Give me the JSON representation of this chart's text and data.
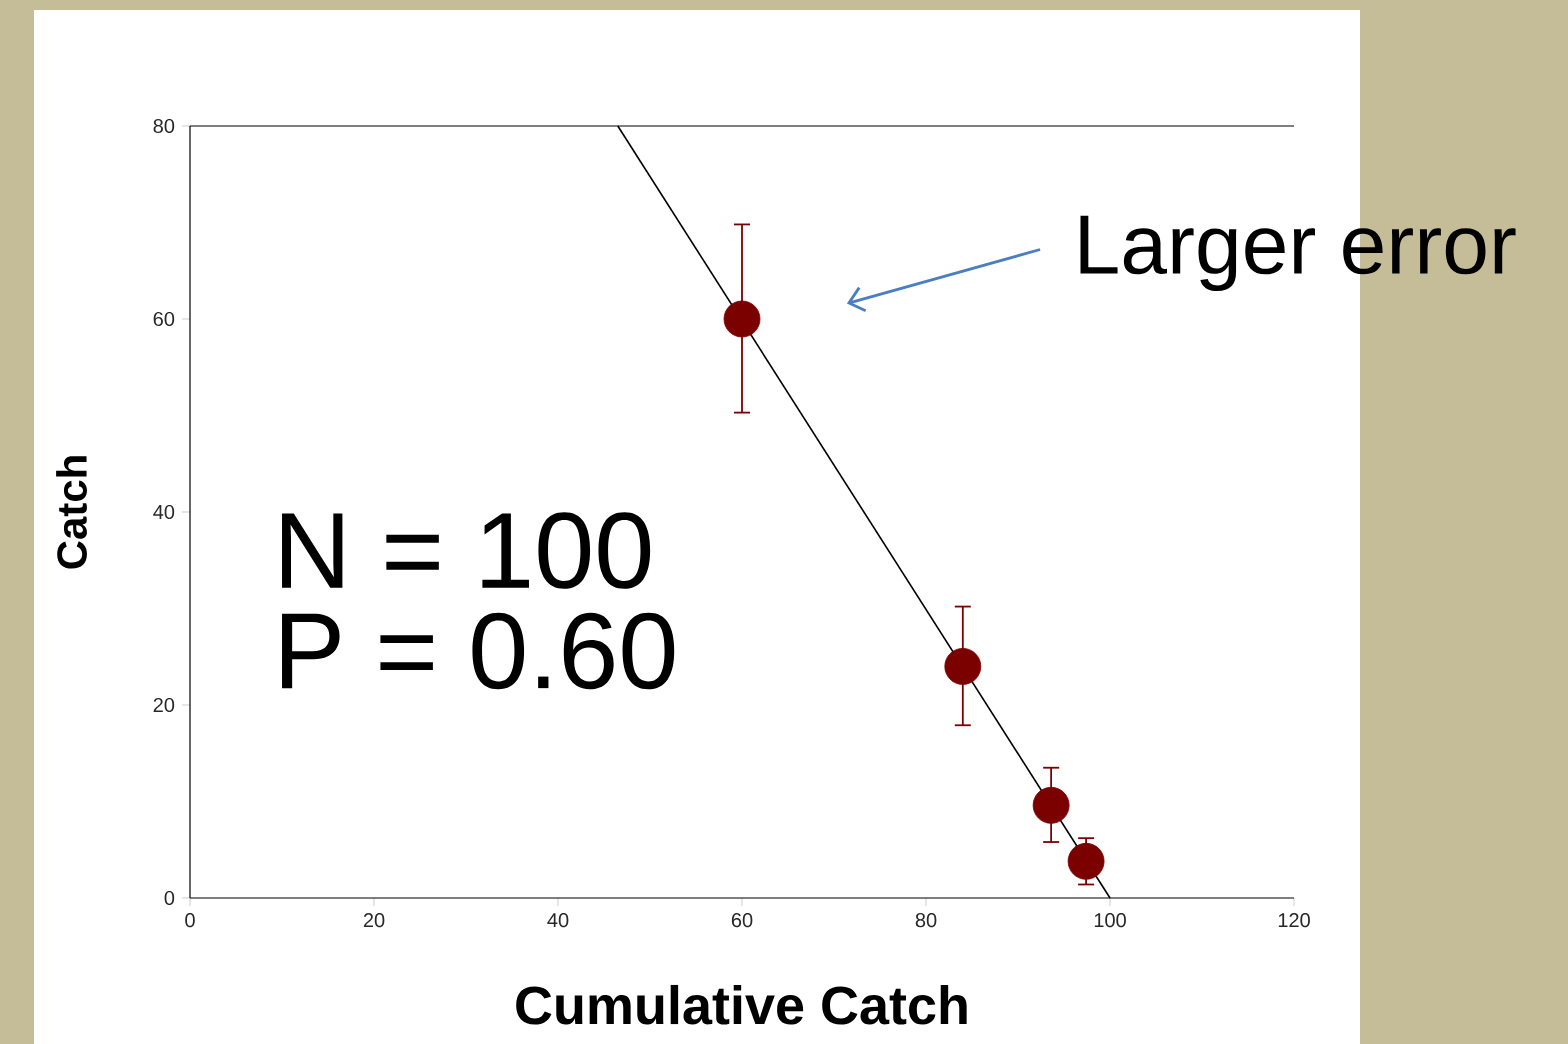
{
  "chart_data": {
    "type": "scatter",
    "xlabel": "Cumulative Catch",
    "ylabel": "Catch",
    "xlim": [
      0,
      120
    ],
    "ylim": [
      0,
      80
    ],
    "xticks": [
      0,
      20,
      40,
      60,
      80,
      100,
      120
    ],
    "yticks": [
      0,
      20,
      40,
      60,
      80
    ],
    "grid": false,
    "series": [
      {
        "marker": "circle",
        "color": "#7b0000",
        "x": [
          60,
          84,
          93.6,
          97.4
        ],
        "values": [
          60,
          24,
          9.6,
          3.8
        ],
        "errors": [
          [
            50.3,
            69.8
          ],
          [
            17.9,
            30.2
          ],
          [
            5.8,
            13.5
          ],
          [
            1.4,
            6.2
          ]
        ]
      },
      {
        "type": "line",
        "marker": "none",
        "color": "#000000",
        "x": [
          46.5,
          100
        ],
        "values": [
          80,
          0
        ]
      }
    ],
    "annotations": [
      "N = 100",
      "P = 0.60",
      "Larger error"
    ]
  }
}
